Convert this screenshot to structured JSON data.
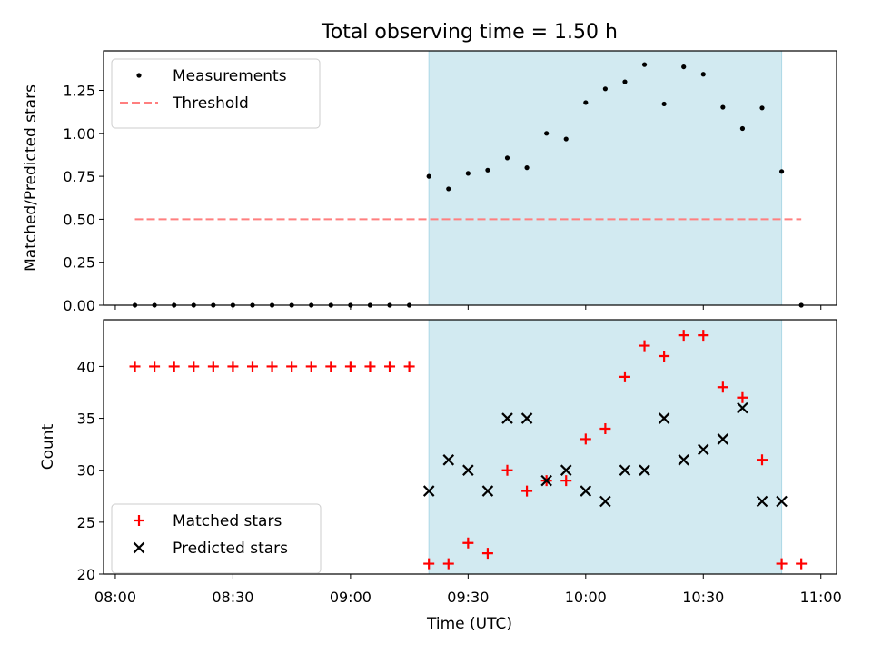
{
  "title": "Total observing time = 1.50 h",
  "xlabel": "Time (UTC)",
  "x_tick_labels": [
    "08:00",
    "08:30",
    "09:00",
    "09:30",
    "10:00",
    "10:30",
    "11:00"
  ],
  "colors": {
    "measurements": "#000000",
    "threshold": "#ff7f7f",
    "matched": "#ff0000",
    "predicted": "#000000",
    "observing_window": "#add8e6"
  },
  "chart_data": [
    {
      "type": "scatter",
      "ylabel": "Matched/Predicted stars",
      "ylim": [
        0,
        1.48
      ],
      "y_ticks": [
        0.0,
        0.25,
        0.5,
        0.75,
        1.0,
        1.25
      ],
      "y_tick_labels": [
        "0.00",
        "0.25",
        "0.50",
        "0.75",
        "1.00",
        "1.25"
      ],
      "xlim": [
        "07:57",
        "11:04"
      ],
      "observing_window": [
        "09:20",
        "10:50"
      ],
      "legend_position": "top-left",
      "series": [
        {
          "name": "Measurements",
          "x": [
            "08:05",
            "08:10",
            "08:15",
            "08:20",
            "08:25",
            "08:30",
            "08:35",
            "08:40",
            "08:45",
            "08:50",
            "08:55",
            "09:00",
            "09:05",
            "09:10",
            "09:15",
            "09:20",
            "09:25",
            "09:30",
            "09:35",
            "09:40",
            "09:45",
            "09:50",
            "09:55",
            "10:00",
            "10:05",
            "10:10",
            "10:15",
            "10:20",
            "10:25",
            "10:30",
            "10:35",
            "10:40",
            "10:45",
            "10:50",
            "10:55"
          ],
          "y": [
            0,
            0,
            0,
            0,
            0,
            0,
            0,
            0,
            0,
            0,
            0,
            0,
            0,
            0,
            0,
            0.75,
            0.677,
            0.767,
            0.786,
            0.857,
            0.8,
            1.0,
            0.967,
            1.179,
            1.259,
            1.3,
            1.4,
            1.171,
            1.387,
            1.344,
            1.152,
            1.028,
            1.148,
            0.778,
            0
          ]
        },
        {
          "name": "Threshold",
          "x": [
            "08:05",
            "10:55"
          ],
          "y": [
            0.5,
            0.5
          ]
        }
      ]
    },
    {
      "type": "scatter",
      "ylabel": "Count",
      "ylim": [
        20,
        44.5
      ],
      "y_ticks": [
        20,
        25,
        30,
        35,
        40
      ],
      "y_tick_labels": [
        "20",
        "25",
        "30",
        "35",
        "40"
      ],
      "xlim": [
        "07:57",
        "11:04"
      ],
      "observing_window": [
        "09:20",
        "10:50"
      ],
      "legend_position": "bottom-left",
      "series": [
        {
          "name": "Matched stars",
          "x": [
            "08:05",
            "08:10",
            "08:15",
            "08:20",
            "08:25",
            "08:30",
            "08:35",
            "08:40",
            "08:45",
            "08:50",
            "08:55",
            "09:00",
            "09:05",
            "09:10",
            "09:15",
            "09:20",
            "09:25",
            "09:30",
            "09:35",
            "09:40",
            "09:45",
            "09:50",
            "09:55",
            "10:00",
            "10:05",
            "10:10",
            "10:15",
            "10:20",
            "10:25",
            "10:30",
            "10:35",
            "10:40",
            "10:45",
            "10:50",
            "10:55"
          ],
          "y": [
            40,
            40,
            40,
            40,
            40,
            40,
            40,
            40,
            40,
            40,
            40,
            40,
            40,
            40,
            40,
            21,
            21,
            23,
            22,
            30,
            28,
            29,
            29,
            33,
            34,
            39,
            42,
            41,
            43,
            43,
            38,
            37,
            31,
            21,
            21
          ]
        },
        {
          "name": "Predicted stars",
          "x": [
            "09:20",
            "09:25",
            "09:30",
            "09:35",
            "09:40",
            "09:45",
            "09:50",
            "09:55",
            "10:00",
            "10:05",
            "10:10",
            "10:15",
            "10:20",
            "10:25",
            "10:30",
            "10:35",
            "10:40",
            "10:45",
            "10:50"
          ],
          "y": [
            28,
            31,
            30,
            28,
            35,
            35,
            29,
            30,
            28,
            27,
            30,
            30,
            35,
            31,
            32,
            33,
            36,
            27,
            27
          ]
        }
      ]
    }
  ]
}
